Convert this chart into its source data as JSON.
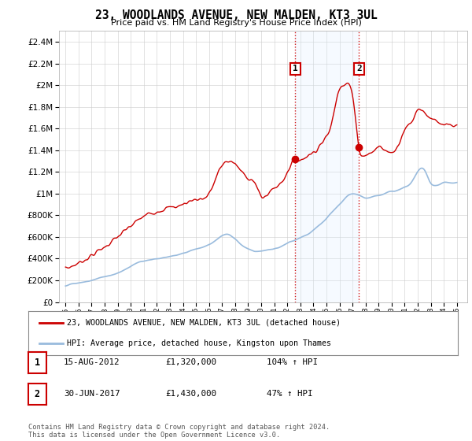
{
  "title": "23, WOODLANDS AVENUE, NEW MALDEN, KT3 3UL",
  "subtitle": "Price paid vs. HM Land Registry's House Price Index (HPI)",
  "legend_line1": "23, WOODLANDS AVENUE, NEW MALDEN, KT3 3UL (detached house)",
  "legend_line2": "HPI: Average price, detached house, Kingston upon Thames",
  "transaction1_date": "15-AUG-2012",
  "transaction1_price": "£1,320,000",
  "transaction1_hpi": "104% ↑ HPI",
  "transaction1_x": 2012.62,
  "transaction1_y": 1320000,
  "transaction2_date": "30-JUN-2017",
  "transaction2_price": "£1,430,000",
  "transaction2_hpi": "47% ↑ HPI",
  "transaction2_x": 2017.5,
  "transaction2_y": 1430000,
  "footer": "Contains HM Land Registry data © Crown copyright and database right 2024.\nThis data is licensed under the Open Government Licence v3.0.",
  "ylim": [
    0,
    2500000
  ],
  "yticks": [
    0,
    200000,
    400000,
    600000,
    800000,
    1000000,
    1200000,
    1400000,
    1600000,
    1800000,
    2000000,
    2200000,
    2400000
  ],
  "xlim_left": 1994.5,
  "xlim_right": 2025.8,
  "red_color": "#cc0000",
  "blue_color": "#99bbdd",
  "shaded_color": "#ddeeff",
  "background_color": "#ffffff",
  "grid_color": "#cccccc",
  "red_ctrl_x": [
    1995,
    1996,
    1997,
    1998,
    1999,
    2000,
    2001,
    2002,
    2003,
    2004,
    2005,
    2006,
    2007,
    2007.5,
    2008,
    2008.5,
    2009,
    2009.5,
    2010,
    2010.5,
    2011,
    2011.5,
    2012,
    2012.62,
    2013,
    2013.5,
    2014,
    2014.5,
    2015,
    2015.5,
    2016,
    2016.3,
    2016.7,
    2017,
    2017.5,
    2018,
    2018.5,
    2019,
    2019.5,
    2020,
    2020.5,
    2021,
    2021.5,
    2022,
    2022.5,
    2023,
    2023.5,
    2024,
    2024.5,
    2025
  ],
  "red_ctrl_y": [
    310000,
    360000,
    430000,
    510000,
    600000,
    700000,
    790000,
    840000,
    870000,
    900000,
    950000,
    1000000,
    1260000,
    1300000,
    1270000,
    1200000,
    1150000,
    1100000,
    970000,
    1000000,
    1050000,
    1100000,
    1200000,
    1320000,
    1310000,
    1350000,
    1380000,
    1450000,
    1520000,
    1700000,
    1980000,
    2010000,
    2010000,
    1900000,
    1430000,
    1360000,
    1380000,
    1430000,
    1400000,
    1380000,
    1450000,
    1600000,
    1650000,
    1780000,
    1750000,
    1700000,
    1650000,
    1630000,
    1620000,
    1620000
  ],
  "blue_ctrl_x": [
    1995,
    1996,
    1997,
    1998,
    1999,
    2000,
    2001,
    2002,
    2003,
    2004,
    2005,
    2006,
    2007,
    2007.5,
    2008,
    2008.5,
    2009,
    2009.5,
    2010,
    2010.5,
    2011,
    2011.5,
    2012,
    2012.5,
    2013,
    2013.5,
    2014,
    2014.5,
    2015,
    2015.5,
    2016,
    2016.5,
    2017,
    2017.5,
    2018,
    2018.5,
    2019,
    2019.5,
    2020,
    2020.5,
    2021,
    2021.5,
    2022,
    2022.5,
    2023,
    2023.5,
    2024,
    2024.5,
    2025
  ],
  "blue_ctrl_y": [
    155000,
    175000,
    200000,
    235000,
    270000,
    330000,
    380000,
    400000,
    420000,
    450000,
    490000,
    530000,
    610000,
    620000,
    580000,
    530000,
    490000,
    470000,
    470000,
    480000,
    490000,
    510000,
    540000,
    565000,
    590000,
    620000,
    660000,
    710000,
    770000,
    840000,
    900000,
    960000,
    1000000,
    990000,
    960000,
    970000,
    990000,
    1000000,
    1020000,
    1030000,
    1060000,
    1100000,
    1200000,
    1220000,
    1100000,
    1080000,
    1100000,
    1100000,
    1100000
  ]
}
